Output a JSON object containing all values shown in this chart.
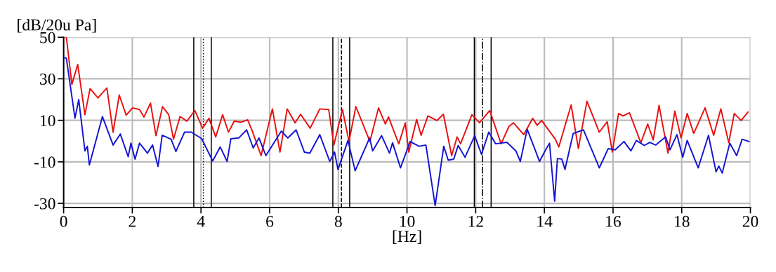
{
  "chart_data": {
    "type": "line",
    "xlabel": "[Hz]",
    "ylabel": "[dB/20u Pa]",
    "xlim": [
      0,
      20
    ],
    "ylim": [
      -32,
      50
    ],
    "xticks": [
      0,
      2,
      4,
      6,
      8,
      10,
      12,
      14,
      16,
      18,
      20
    ],
    "yticks": [
      -30,
      -10,
      10,
      30,
      50
    ],
    "grid": true,
    "legend": false,
    "line_style": "solid",
    "series": [
      {
        "color": "#e81010",
        "x": [
          0,
          0.08,
          0.24,
          0.41,
          0.62,
          0.77,
          1.0,
          1.26,
          1.44,
          1.62,
          1.82,
          2.01,
          2.21,
          2.34,
          2.53,
          2.69,
          2.88,
          3.06,
          3.2,
          3.39,
          3.59,
          3.82,
          4.05,
          4.23,
          4.43,
          4.63,
          4.8,
          4.97,
          5.16,
          5.36,
          5.49,
          5.75,
          6.08,
          6.3,
          6.51,
          6.74,
          6.9,
          7.18,
          7.46,
          7.72,
          7.87,
          8.12,
          8.31,
          8.51,
          8.92,
          9.17,
          9.37,
          9.46,
          9.76,
          9.95,
          10.05,
          10.28,
          10.41,
          10.61,
          10.87,
          11.06,
          11.3,
          11.46,
          11.56,
          11.89,
          12.11,
          12.41,
          12.74,
          12.97,
          13.1,
          13.4,
          13.66,
          13.79,
          13.92,
          14.32,
          14.42,
          14.78,
          14.99,
          15.24,
          15.6,
          15.83,
          15.98,
          16.16,
          16.29,
          16.48,
          16.81,
          17.01,
          17.17,
          17.34,
          17.6,
          17.8,
          17.98,
          18.16,
          18.35,
          18.68,
          18.93,
          19.14,
          19.37,
          19.53,
          19.73,
          19.93
        ],
        "values": [
          50,
          50,
          27.3,
          36.9,
          12.7,
          25.3,
          20.8,
          25.6,
          4.3,
          22.2,
          12.5,
          16,
          15.2,
          11.6,
          18.3,
          2.6,
          16.6,
          12.7,
          0.9,
          11.8,
          9.6,
          14.7,
          6.2,
          11,
          2,
          12.7,
          4.3,
          9.6,
          9.1,
          10.2,
          5,
          -7,
          15.5,
          -5.3,
          15.5,
          8.8,
          12.9,
          6.2,
          15.5,
          15.2,
          -1.9,
          15.2,
          -0.2,
          16.6,
          -0.2,
          16,
          8.2,
          11.6,
          -1.3,
          8.8,
          -5.3,
          10.4,
          2.8,
          12.1,
          9.9,
          12.9,
          -7,
          2,
          -1.3,
          12.7,
          8.8,
          14.7,
          -1.3,
          7.1,
          8.8,
          3.1,
          11,
          7.6,
          9.9,
          0.9,
          -2.8,
          17.4,
          -3.6,
          19.2,
          4.3,
          9.3,
          -5.3,
          13.3,
          12.1,
          13.6,
          -0.8,
          8.2,
          0.6,
          17.2,
          -5.8,
          14.4,
          1.5,
          13.3,
          3.7,
          16,
          2.8,
          15.5,
          -0.8,
          13.3,
          9.9,
          14
        ]
      },
      {
        "color": "#1414d2",
        "x": [
          0,
          0.08,
          0.33,
          0.44,
          0.62,
          0.69,
          0.75,
          1.13,
          1.44,
          1.65,
          1.88,
          1.96,
          2.08,
          2.21,
          2.44,
          2.59,
          2.75,
          2.87,
          3.13,
          3.27,
          3.52,
          3.72,
          4.02,
          4.34,
          4.56,
          4.76,
          4.87,
          5.1,
          5.33,
          5.52,
          5.69,
          5.89,
          6.34,
          6.53,
          6.77,
          7.01,
          7.17,
          7.46,
          7.75,
          7.89,
          7.99,
          8.28,
          8.49,
          8.91,
          9.0,
          9.26,
          9.49,
          9.58,
          9.81,
          10.09,
          10.35,
          10.55,
          10.82,
          11.07,
          11.2,
          11.36,
          11.49,
          11.69,
          11.97,
          12.17,
          12.38,
          12.58,
          12.91,
          13.17,
          13.3,
          13.5,
          13.86,
          14.02,
          14.15,
          14.3,
          14.38,
          14.51,
          14.6,
          14.84,
          15.14,
          15.6,
          15.86,
          16.06,
          16.32,
          16.52,
          16.68,
          16.91,
          17.07,
          17.24,
          17.53,
          17.66,
          17.86,
          18.03,
          18.16,
          18.48,
          18.78,
          19.0,
          19.08,
          19.18,
          19.4,
          19.6,
          19.76,
          19.96
        ],
        "values": [
          40.2,
          39.9,
          11,
          20,
          -4.7,
          -2.5,
          -11.5,
          11.8,
          -1.9,
          3.4,
          -7.5,
          -1,
          -8.7,
          -1,
          -5.8,
          -1.9,
          -12.2,
          2.8,
          0.9,
          -5,
          4.3,
          4.3,
          1.2,
          -9.6,
          -2.8,
          -9.8,
          1.1,
          1.5,
          5.4,
          -3.3,
          1.5,
          -7,
          4.8,
          1.5,
          5.4,
          -5.3,
          -5.8,
          3.1,
          -9.8,
          -5.3,
          -13.7,
          0.3,
          -14.3,
          1.5,
          -4.7,
          2.6,
          -5.8,
          -0.8,
          -12.9,
          -0.2,
          -2.5,
          -1.9,
          -31.1,
          -2.5,
          -9.2,
          -8.7,
          -2.1,
          -7.8,
          2.6,
          -6.4,
          4.3,
          -1.3,
          -0.6,
          -4.7,
          -9.8,
          5.7,
          -9.8,
          -4.7,
          -1,
          -28.9,
          -8.4,
          -8.7,
          -13.7,
          3.7,
          5.4,
          -12.9,
          -3.6,
          -4.2,
          -0.2,
          -4.7,
          0.3,
          -2.1,
          -0.6,
          -1.9,
          2,
          -4.2,
          3.1,
          -7.8,
          0.3,
          -12.9,
          2.8,
          -14.8,
          -12,
          -15.4,
          -1,
          -7,
          0.9,
          -0.2
        ]
      }
    ],
    "ref_lines": [
      {
        "axis": "x",
        "value": 3.79,
        "color": "#000000",
        "line_style": "solid"
      },
      {
        "axis": "x",
        "value": 4.07,
        "color": "#000000",
        "line_style": "dotted"
      },
      {
        "axis": "x",
        "value": 4.3,
        "color": "#000000",
        "line_style": "solid"
      },
      {
        "axis": "x",
        "value": 7.84,
        "color": "#000000",
        "line_style": "solid"
      },
      {
        "axis": "x",
        "value": 8.09,
        "color": "#000000",
        "line_style": "dashed"
      },
      {
        "axis": "x",
        "value": 8.33,
        "color": "#000000",
        "line_style": "solid"
      },
      {
        "axis": "x",
        "value": 11.96,
        "color": "#000000",
        "line_style": "solid"
      },
      {
        "axis": "x",
        "value": 12.2,
        "color": "#000000",
        "line_style": "dashdot"
      },
      {
        "axis": "x",
        "value": 12.45,
        "color": "#000000",
        "line_style": "solid"
      }
    ]
  }
}
